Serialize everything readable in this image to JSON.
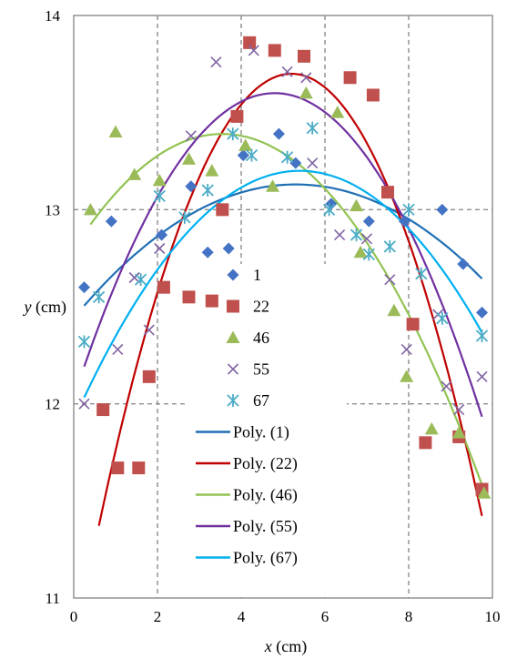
{
  "chart_data": {
    "type": "scatter",
    "xlabel_var": "x",
    "xlabel_unit": " (cm)",
    "ylabel_var": "y",
    "ylabel_unit": " (cm)",
    "xlim": [
      0,
      10
    ],
    "ylim": [
      11,
      14
    ],
    "x_ticks": [
      0,
      2,
      4,
      6,
      8,
      10
    ],
    "y_ticks": [
      11,
      12,
      13,
      14
    ],
    "grid": "dashed",
    "legend_position": "center-bottom",
    "series": [
      {
        "name": "1",
        "marker": "diamond",
        "color": "#4472C4",
        "points": [
          [
            0.25,
            12.6
          ],
          [
            0.9,
            12.94
          ],
          [
            2.1,
            12.87
          ],
          [
            2.8,
            13.12
          ],
          [
            3.2,
            12.78
          ],
          [
            3.7,
            12.8
          ],
          [
            4.05,
            13.28
          ],
          [
            4.9,
            13.39
          ],
          [
            5.3,
            13.24
          ],
          [
            6.15,
            13.03
          ],
          [
            7.05,
            12.94
          ],
          [
            7.9,
            12.94
          ],
          [
            8.8,
            13.0
          ],
          [
            9.3,
            12.72
          ],
          [
            9.75,
            12.47
          ]
        ]
      },
      {
        "name": "22",
        "marker": "square",
        "color": "#C0504D",
        "points": [
          [
            0.7,
            11.97
          ],
          [
            1.05,
            11.67
          ],
          [
            1.55,
            11.67
          ],
          [
            1.8,
            12.14
          ],
          [
            2.15,
            12.6
          ],
          [
            2.75,
            12.55
          ],
          [
            3.3,
            12.53
          ],
          [
            3.55,
            13.0
          ],
          [
            3.9,
            13.48
          ],
          [
            4.2,
            13.86
          ],
          [
            4.8,
            13.82
          ],
          [
            5.5,
            13.79
          ],
          [
            6.6,
            13.68
          ],
          [
            7.15,
            13.59
          ],
          [
            7.5,
            13.09
          ],
          [
            8.1,
            12.41
          ],
          [
            8.4,
            11.8
          ],
          [
            9.2,
            11.83
          ],
          [
            9.75,
            11.56
          ]
        ]
      },
      {
        "name": "46",
        "marker": "triangle",
        "color": "#9BBB59",
        "points": [
          [
            0.4,
            13.0
          ],
          [
            1.0,
            13.4
          ],
          [
            1.45,
            13.18
          ],
          [
            2.05,
            13.15
          ],
          [
            2.75,
            13.26
          ],
          [
            3.3,
            13.2
          ],
          [
            4.1,
            13.33
          ],
          [
            4.75,
            13.12
          ],
          [
            5.55,
            13.6
          ],
          [
            6.3,
            13.5
          ],
          [
            6.75,
            13.02
          ],
          [
            6.85,
            12.78
          ],
          [
            7.65,
            12.48
          ],
          [
            7.95,
            12.14
          ],
          [
            8.55,
            11.87
          ],
          [
            9.2,
            11.85
          ],
          [
            9.8,
            11.54
          ]
        ]
      },
      {
        "name": "55",
        "marker": "x",
        "color": "#8064A2",
        "points": [
          [
            0.25,
            12.0
          ],
          [
            1.05,
            12.28
          ],
          [
            1.45,
            12.65
          ],
          [
            1.8,
            12.38
          ],
          [
            2.05,
            12.8
          ],
          [
            2.8,
            13.38
          ],
          [
            3.4,
            13.76
          ],
          [
            4.3,
            13.82
          ],
          [
            5.1,
            13.71
          ],
          [
            5.55,
            13.68
          ],
          [
            5.7,
            13.24
          ],
          [
            6.35,
            12.87
          ],
          [
            7.0,
            12.85
          ],
          [
            7.55,
            12.64
          ],
          [
            7.95,
            12.28
          ],
          [
            8.7,
            12.46
          ],
          [
            8.9,
            12.09
          ],
          [
            9.2,
            11.97
          ],
          [
            9.75,
            12.14
          ]
        ]
      },
      {
        "name": "67",
        "marker": "asterisk",
        "color": "#4BACC6",
        "points": [
          [
            0.25,
            12.32
          ],
          [
            0.6,
            12.55
          ],
          [
            1.6,
            12.64
          ],
          [
            2.05,
            13.07
          ],
          [
            2.65,
            12.96
          ],
          [
            3.2,
            13.1
          ],
          [
            3.8,
            13.39
          ],
          [
            4.25,
            13.28
          ],
          [
            5.1,
            13.27
          ],
          [
            5.7,
            13.42
          ],
          [
            6.1,
            13.0
          ],
          [
            6.75,
            12.87
          ],
          [
            7.05,
            12.77
          ],
          [
            7.55,
            12.81
          ],
          [
            8.0,
            13.0
          ],
          [
            8.3,
            12.67
          ],
          [
            8.8,
            12.44
          ],
          [
            9.75,
            12.35
          ]
        ]
      }
    ],
    "trendlines": [
      {
        "name": "Poly. (1)",
        "color": "#1F6FB5",
        "x_range": [
          0.25,
          9.75
        ],
        "vertex_x": 5.3,
        "vertex_y": 13.13,
        "curvature": 0.0245
      },
      {
        "name": "Poly. (22)",
        "color": "#C00000",
        "x_range": [
          0.6,
          9.75
        ],
        "vertex_x": 5.2,
        "vertex_y": 13.7,
        "curvature": 0.11
      },
      {
        "name": "Poly. (46)",
        "color": "#92C353",
        "x_range": [
          0.4,
          9.75
        ],
        "vertex_x": 3.55,
        "vertex_y": 13.39,
        "curvature": 0.047
      },
      {
        "name": "Poly. (55)",
        "color": "#7030A0",
        "x_range": [
          0.25,
          9.75
        ],
        "vertex_x": 4.8,
        "vertex_y": 13.6,
        "curvature": 0.068
      },
      {
        "name": "Poly. (67)",
        "color": "#00B0F0",
        "x_range": [
          0.25,
          9.75
        ],
        "vertex_x": 5.4,
        "vertex_y": 13.2,
        "curvature": 0.044
      }
    ]
  }
}
